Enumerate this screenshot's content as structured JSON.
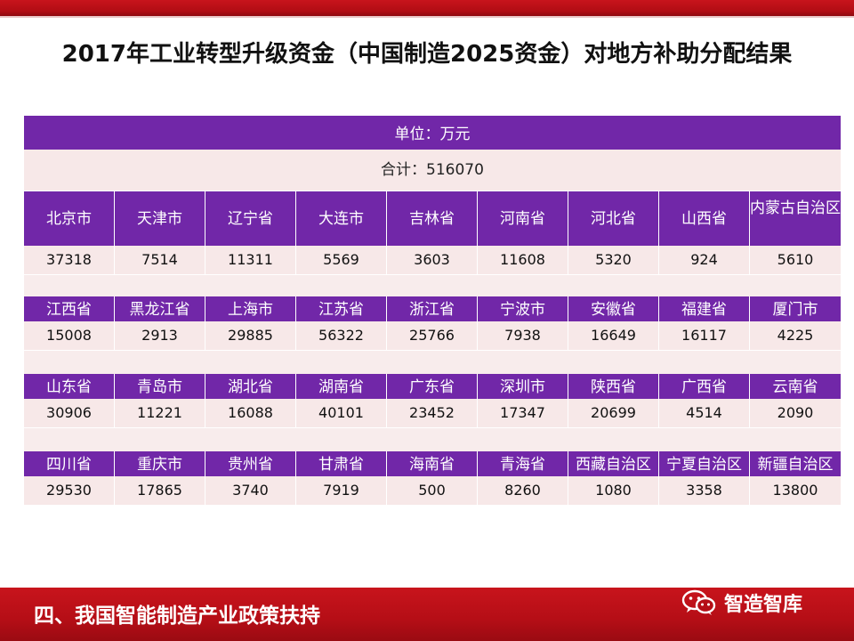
{
  "title": "2017年工业转型升级资金（中国制造2025资金）对地方补助分配结果",
  "unit": "单位：万元",
  "total": "合计：516070",
  "groups": [
    {
      "names": [
        "北京市",
        "天津市",
        "辽宁省",
        "大连市",
        "吉林省",
        "河南省",
        "河北省",
        "山西省",
        "内蒙古自治区"
      ],
      "values": [
        "37318",
        "7514",
        "11311",
        "5569",
        "3603",
        "11608",
        "5320",
        "924",
        "5610"
      ]
    },
    {
      "names": [
        "江西省",
        "黑龙江省",
        "上海市",
        "江苏省",
        "浙江省",
        "宁波市",
        "安徽省",
        "福建省",
        "厦门市"
      ],
      "values": [
        "15008",
        "2913",
        "29885",
        "56322",
        "25766",
        "7938",
        "16649",
        "16117",
        "4225"
      ]
    },
    {
      "names": [
        "山东省",
        "青岛市",
        "湖北省",
        "湖南省",
        "广东省",
        "深圳市",
        "陕西省",
        "广西省",
        "云南省"
      ],
      "values": [
        "30906",
        "11221",
        "16088",
        "40101",
        "23452",
        "17347",
        "20699",
        "4514",
        "2090"
      ]
    },
    {
      "names": [
        "四川省",
        "重庆市",
        "贵州省",
        "甘肃省",
        "海南省",
        "青海省",
        "西藏自治区",
        "宁夏自治区",
        "新疆自治区"
      ],
      "values": [
        "29530",
        "17865",
        "3740",
        "7919",
        "500",
        "8260",
        "1080",
        "3358",
        "13800"
      ]
    }
  ],
  "footer": {
    "section_title": "四、我国智能制造产业政策扶持",
    "watermark": "智造智库",
    "watermark_icon": "wechat-icon"
  }
}
